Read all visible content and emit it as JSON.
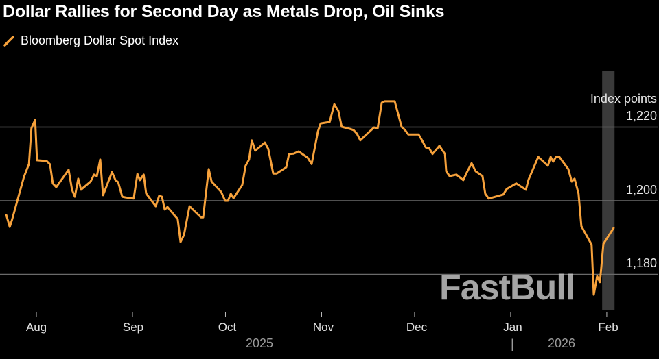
{
  "colors": {
    "line": "#f6a13b",
    "grid": "#6a6a6a",
    "band": "#3a3a3a"
  },
  "watermark": "FastBull",
  "chart_data": {
    "type": "line",
    "title": "Dollar Rallies for Second Day as Metals Drop, Oil Sinks",
    "legend": [
      "Bloomberg Dollar Spot Index"
    ],
    "ylabel": "Index points",
    "ylim": [
      1168,
      1234
    ],
    "yticks": [
      {
        "value": 1220,
        "label": "1,220"
      },
      {
        "value": 1200,
        "label": "1,200"
      },
      {
        "value": 1180,
        "label": "1,180"
      }
    ],
    "xunit": "days since Aug 1, 2025",
    "xticks": [
      {
        "day": 0,
        "label": "Aug"
      },
      {
        "day": 31,
        "label": "Sep"
      },
      {
        "day": 61,
        "label": "Oct"
      },
      {
        "day": 92,
        "label": "Nov"
      },
      {
        "day": 122,
        "label": "Dec"
      },
      {
        "day": 153,
        "label": "Jan"
      },
      {
        "day": 184,
        "label": "Feb"
      }
    ],
    "years": [
      {
        "label": "2025"
      },
      {
        "label": "2026"
      }
    ],
    "highlight_days": [
      182.5,
      186.5
    ],
    "grid": true,
    "series": [
      {
        "name": "Bloomberg Dollar Spot Index",
        "points": [
          [
            -9.7,
            1196.1
          ],
          [
            -8.6,
            1192.9
          ],
          [
            -7.8,
            1195.0
          ],
          [
            -4.0,
            1206.5
          ],
          [
            -2.4,
            1210.0
          ],
          [
            -1.6,
            1219.7
          ],
          [
            -0.4,
            1222.0
          ],
          [
            0.2,
            1211.0
          ],
          [
            3.3,
            1210.8
          ],
          [
            4.4,
            1209.9
          ],
          [
            5.3,
            1204.7
          ],
          [
            6.4,
            1203.7
          ],
          [
            10.4,
            1208.4
          ],
          [
            11.5,
            1203.0
          ],
          [
            12.4,
            1201.1
          ],
          [
            13.5,
            1206.0
          ],
          [
            14.4,
            1203.0
          ],
          [
            17.5,
            1205.2
          ],
          [
            18.6,
            1207.1
          ],
          [
            19.5,
            1206.7
          ],
          [
            20.6,
            1211.2
          ],
          [
            21.5,
            1201.5
          ],
          [
            24.4,
            1207.8
          ],
          [
            25.5,
            1205.6
          ],
          [
            26.4,
            1205.0
          ],
          [
            27.7,
            1201.1
          ],
          [
            28.8,
            1200.9
          ],
          [
            31.4,
            1200.6
          ],
          [
            32.6,
            1207.3
          ],
          [
            33.4,
            1205.6
          ],
          [
            34.6,
            1207.1
          ],
          [
            35.4,
            1202.0
          ],
          [
            38.5,
            1198.5
          ],
          [
            39.6,
            1201.3
          ],
          [
            40.5,
            1201.1
          ],
          [
            41.4,
            1197.6
          ],
          [
            42.3,
            1198.3
          ],
          [
            45.6,
            1195.0
          ],
          [
            46.5,
            1188.8
          ],
          [
            47.6,
            1190.7
          ],
          [
            49.4,
            1198.5
          ],
          [
            53.1,
            1195.5
          ],
          [
            53.8,
            1195.5
          ],
          [
            55.6,
            1208.6
          ],
          [
            56.5,
            1205.2
          ],
          [
            59.6,
            1202.4
          ],
          [
            60.9,
            1200.0
          ],
          [
            61.8,
            1200.0
          ],
          [
            62.7,
            1201.9
          ],
          [
            63.6,
            1200.7
          ],
          [
            66.4,
            1204.3
          ],
          [
            67.5,
            1209.5
          ],
          [
            68.6,
            1211.2
          ],
          [
            69.5,
            1216.4
          ],
          [
            70.6,
            1213.6
          ],
          [
            73.7,
            1215.8
          ],
          [
            74.8,
            1214.1
          ],
          [
            76.4,
            1207.4
          ],
          [
            77.5,
            1207.4
          ],
          [
            80.6,
            1209.1
          ],
          [
            81.5,
            1212.7
          ],
          [
            83.0,
            1212.8
          ],
          [
            84.6,
            1213.4
          ],
          [
            87.5,
            1211.7
          ],
          [
            88.8,
            1210.0
          ],
          [
            90.8,
            1218.8
          ],
          [
            91.7,
            1221.0
          ],
          [
            94.6,
            1221.4
          ],
          [
            96.1,
            1226.2
          ],
          [
            97.4,
            1224.4
          ],
          [
            98.5,
            1220.1
          ],
          [
            101.2,
            1219.5
          ],
          [
            102.3,
            1219.2
          ],
          [
            103.4,
            1218.2
          ],
          [
            104.5,
            1216.4
          ],
          [
            105.6,
            1217.3
          ],
          [
            108.9,
            1219.9
          ],
          [
            110.1,
            1219.7
          ],
          [
            111.4,
            1226.6
          ],
          [
            112.3,
            1227.0
          ],
          [
            115.6,
            1227.0
          ],
          [
            117.8,
            1220.1
          ],
          [
            118.9,
            1219.2
          ],
          [
            120.0,
            1218.0
          ],
          [
            123.3,
            1218.0
          ],
          [
            124.4,
            1216.4
          ],
          [
            125.6,
            1214.5
          ],
          [
            126.7,
            1214.3
          ],
          [
            127.8,
            1212.7
          ],
          [
            130.0,
            1214.9
          ],
          [
            131.8,
            1212.7
          ],
          [
            132.2,
            1208.0
          ],
          [
            133.3,
            1206.7
          ],
          [
            135.5,
            1207.1
          ],
          [
            137.7,
            1205.6
          ],
          [
            138.8,
            1207.6
          ],
          [
            140.4,
            1210.2
          ],
          [
            141.7,
            1208.0
          ],
          [
            143.9,
            1206.7
          ],
          [
            144.8,
            1201.9
          ],
          [
            145.9,
            1200.6
          ],
          [
            150.6,
            1201.7
          ],
          [
            151.7,
            1203.2
          ],
          [
            154.8,
            1204.7
          ],
          [
            157.9,
            1203.0
          ],
          [
            158.8,
            1205.8
          ],
          [
            161.9,
            1211.9
          ],
          [
            165.0,
            1209.5
          ],
          [
            165.9,
            1211.9
          ],
          [
            166.7,
            1210.6
          ],
          [
            167.6,
            1211.9
          ],
          [
            168.7,
            1211.9
          ],
          [
            171.6,
            1208.6
          ],
          [
            172.7,
            1205.2
          ],
          [
            173.6,
            1206.0
          ],
          [
            174.9,
            1201.9
          ],
          [
            175.8,
            1193.1
          ],
          [
            179.1,
            1188.1
          ],
          [
            179.8,
            1174.5
          ],
          [
            180.9,
            1179.5
          ],
          [
            181.8,
            1177.9
          ],
          [
            182.9,
            1188.3
          ],
          [
            186.2,
            1192.6
          ]
        ]
      }
    ]
  }
}
